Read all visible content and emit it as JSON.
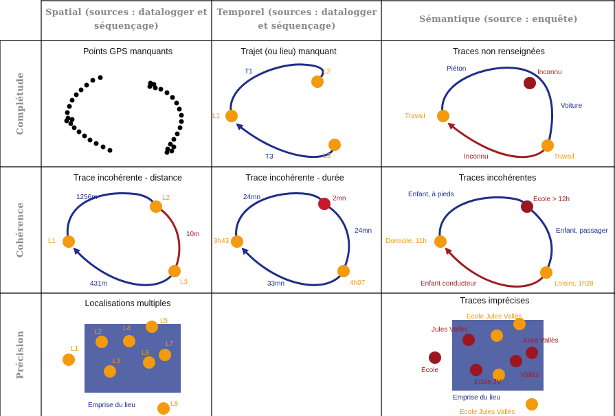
{
  "colors": {
    "route": "#1f2e8a",
    "route_bad": "#a01d22",
    "place": "#f39a0e",
    "unknown": "#9b1620",
    "area": "#5565a6",
    "header_text": "#8a8a8a"
  },
  "headers": [
    "Spatial (sources : datalogger et séquençage)",
    "Temporel (sources : datalogger et séquençage)",
    "Sémantique (source : enquête)"
  ],
  "rows": [
    "Complétude",
    "Cohérence",
    "Précision"
  ],
  "cells": {
    "spatial_completude": {
      "title": "Points GPS manquants"
    },
    "temporel_completude": {
      "title": "Trajet (ou lieu) manquant",
      "labels": [
        "T1",
        "L2",
        "L1",
        "T3",
        "L3"
      ]
    },
    "semantique_completude": {
      "title": "Traces non renseignées",
      "labels": [
        "Piéton",
        "Inconnu",
        "Voiture",
        "Travail",
        "Inconnu",
        "Travail"
      ]
    },
    "spatial_coherence": {
      "title": "Trace incohérente - distance",
      "labels": [
        "1256m",
        "L2",
        "10m",
        "L1",
        "L3",
        "431m"
      ]
    },
    "temporel_coherence": {
      "title": "Trace incohérente - durée",
      "labels": [
        "24mn",
        "2mn",
        "24mn",
        "3h43",
        "4h07",
        "33mn"
      ]
    },
    "semantique_coherence": {
      "title": "Traces incohérentes",
      "labels": [
        "Enfant, à pieds",
        "Ecole > 12h",
        "Enfant, passager",
        "Domicile, 11h",
        "Enfant conducteur",
        "Loisirs, 1h28"
      ]
    },
    "spatial_precision": {
      "title": "Localisations multiples",
      "labels": [
        "L5",
        "L2",
        "L4",
        "L7",
        "L1",
        "L3",
        "L6",
        "L8"
      ],
      "area_label": "Emprise du lieu"
    },
    "semantique_precision": {
      "title": "Traces imprécises",
      "labels": [
        "Ecole Jules Vallès",
        "Jules Vallès",
        "Jules Vallès",
        "Ecole",
        "Ecole JV",
        "Vallès",
        "Ecole Jules Vallès"
      ],
      "area_label": "Emprise du lieu"
    }
  }
}
